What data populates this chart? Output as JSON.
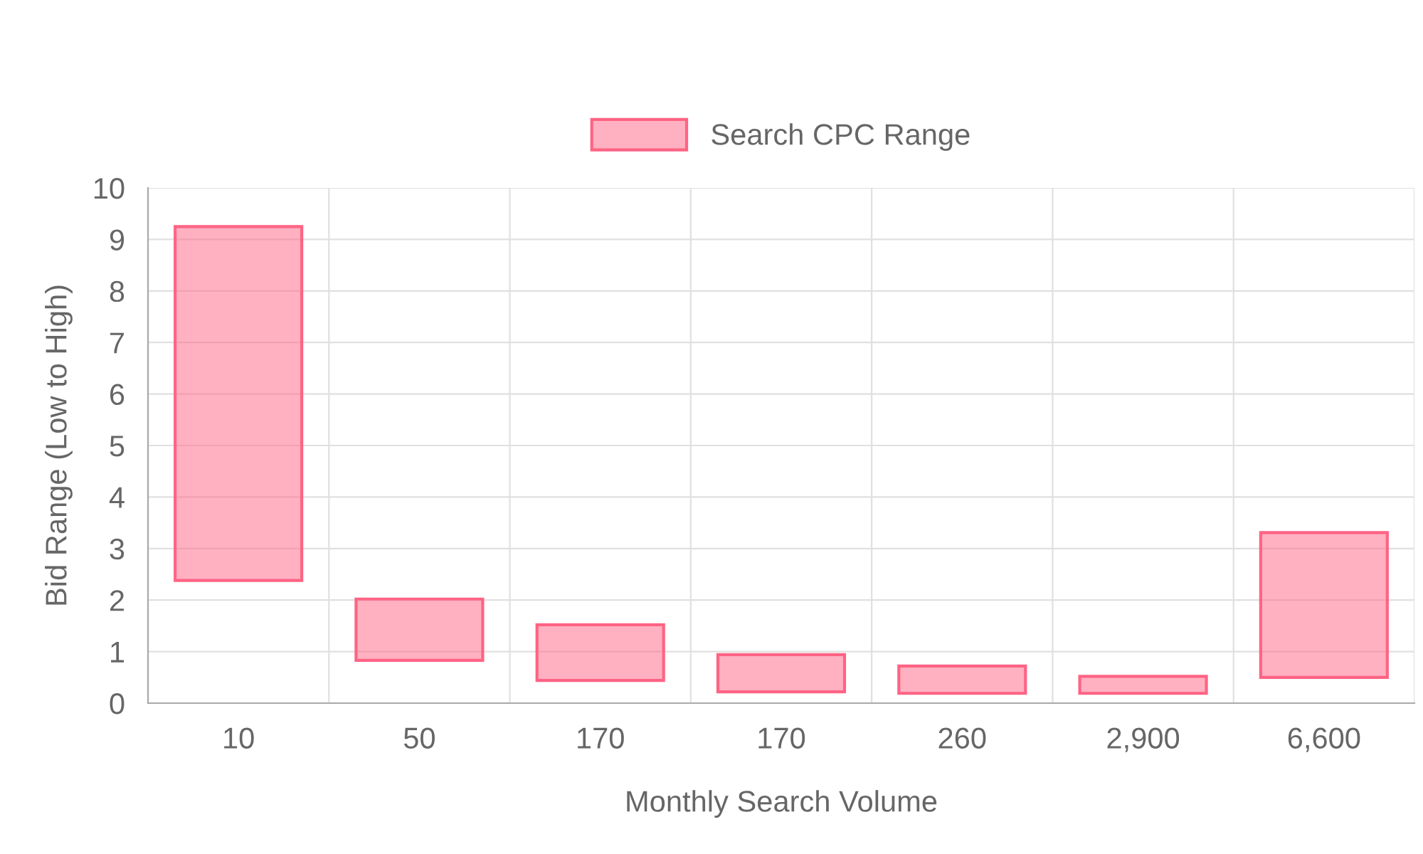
{
  "chart_data": {
    "type": "bar",
    "xlabel": "Monthly Search Volume",
    "ylabel": "Bid Range (Low to High)",
    "categories": [
      "10",
      "50",
      "170",
      "170",
      "260",
      "2,900",
      "6,600"
    ],
    "series": [
      {
        "name": "Search CPC Range",
        "color": "#ff6384",
        "values": [
          6.87,
          1.19,
          1.08,
          0.72,
          0.53,
          0.33,
          2.81
        ],
        "base": [
          2.38,
          0.83,
          0.44,
          0.22,
          0.19,
          0.19,
          0.5
        ]
      }
    ],
    "ylim": [
      0,
      10
    ],
    "yticks": [
      0,
      1,
      2,
      3,
      4,
      5,
      6,
      7,
      8,
      9,
      10
    ],
    "grid": true,
    "legend": "top"
  }
}
